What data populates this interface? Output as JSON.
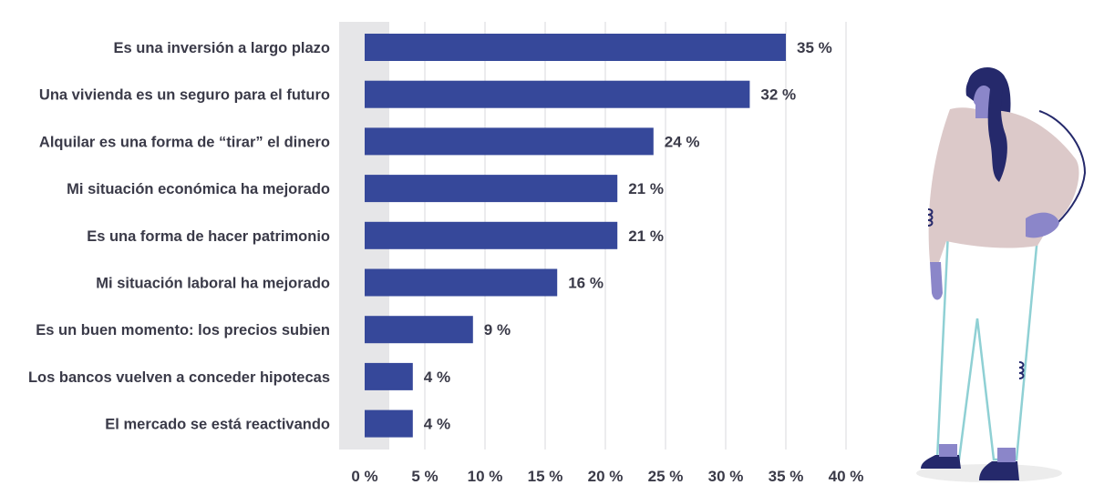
{
  "chart_data": {
    "type": "bar",
    "orientation": "horizontal",
    "categories": [
      "Es una inversión a largo plazo",
      "Una vivienda es un seguro para el futuro",
      "Alquilar es una forma de “tirar” el dinero",
      "Mi situación económica ha mejorado",
      "Es una forma de hacer patrimonio",
      "Mi situación laboral ha mejorado",
      "Es un buen momento: los precios subien",
      "Los bancos vuelven a conceder hipotecas",
      "El mercado se está reactivando"
    ],
    "values": [
      35,
      32,
      24,
      21,
      21,
      16,
      9,
      4,
      4
    ],
    "value_labels": [
      "35 %",
      "32 %",
      "24 %",
      "21 %",
      "21 %",
      "16 %",
      "9 %",
      "4 %",
      "4 %"
    ],
    "x_ticks": [
      0,
      5,
      10,
      15,
      20,
      25,
      30,
      35,
      40
    ],
    "x_tick_labels": [
      "0 %",
      "5 %",
      "10 %",
      "15 %",
      "20 %",
      "25 %",
      "30 %",
      "35 %",
      "40 %"
    ],
    "xlim": [
      -2,
      40
    ],
    "grid": true,
    "bar_color": "#36489a",
    "title": "",
    "xlabel": "",
    "ylabel": ""
  },
  "illustration": {
    "icon": "standing-woman-illustration",
    "colors": {
      "hair": "#25296b",
      "sweater": "#dcc9c9",
      "skin": "#8b86c9",
      "pants_outline": "#8fd0d4",
      "shoes": "#25296b",
      "shadow": "#ececec"
    }
  }
}
